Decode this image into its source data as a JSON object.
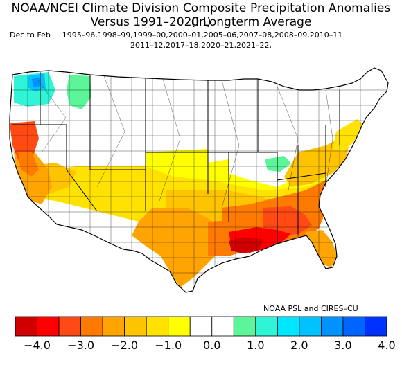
{
  "title_line1": "NOAA/NCEI Climate Division Composite Precipitation Anomalies (in)",
  "title_line2": "Versus 1991–2020 Longterm Average",
  "season_label": "Dec to Feb",
  "years_line1": "1995–96,1998–99,1999–00,2000–01,2005–06,2007–08,2008–09,2010–11",
  "years_line2": "2011–12,2017–18,2020–21,2021–22,",
  "credit": "NOAA PSL and CIRES–CU",
  "legend": {
    "colors": [
      "#d00000",
      "#ff0000",
      "#ff4a14",
      "#ff7a00",
      "#ffa400",
      "#ffc400",
      "#ffe200",
      "#ffff00",
      "#ffffff",
      "#ffffff",
      "#5cf59a",
      "#2ff5d6",
      "#00e6ff",
      "#00c2ff",
      "#0092ff",
      "#0064ff",
      "#0032ff"
    ],
    "ticks": [
      "−4.0",
      "−3.0",
      "−2.0",
      "−1.0",
      "0.0",
      "1.0",
      "2.0",
      "3.0",
      "4.0"
    ]
  },
  "regions": [
    {
      "name": "pacific-northwest-coast",
      "color": "#2ff5d6"
    },
    {
      "name": "puget-sound",
      "color": "#00c2ff"
    },
    {
      "name": "olympic-peninsula",
      "color": "#0092ff"
    },
    {
      "name": "eastern-washington",
      "color": "#5cf59a"
    },
    {
      "name": "ohio-valley-wet",
      "color": "#5cf59a"
    },
    {
      "name": "northern-california",
      "color": "#ff4a14"
    },
    {
      "name": "california-coast",
      "color": "#ff7a00"
    },
    {
      "name": "southern-california",
      "color": "#ffa400"
    },
    {
      "name": "great-basin-south",
      "color": "#ffc400"
    },
    {
      "name": "southwest",
      "color": "#ffe200"
    },
    {
      "name": "southern-plains",
      "color": "#ffc400"
    },
    {
      "name": "texas",
      "color": "#ffa400"
    },
    {
      "name": "gulf-coast",
      "color": "#ff7a00"
    },
    {
      "name": "louisiana-core",
      "color": "#ff0000"
    },
    {
      "name": "louisiana-center",
      "color": "#d00000"
    },
    {
      "name": "southeast",
      "color": "#ff7a00"
    },
    {
      "name": "georgia-core",
      "color": "#ff4a14"
    },
    {
      "name": "florida",
      "color": "#ffa400"
    },
    {
      "name": "mid-atlantic",
      "color": "#ffc400"
    },
    {
      "name": "northeast-coast",
      "color": "#ffe200"
    },
    {
      "name": "central-plains",
      "color": "#ffff00"
    }
  ]
}
